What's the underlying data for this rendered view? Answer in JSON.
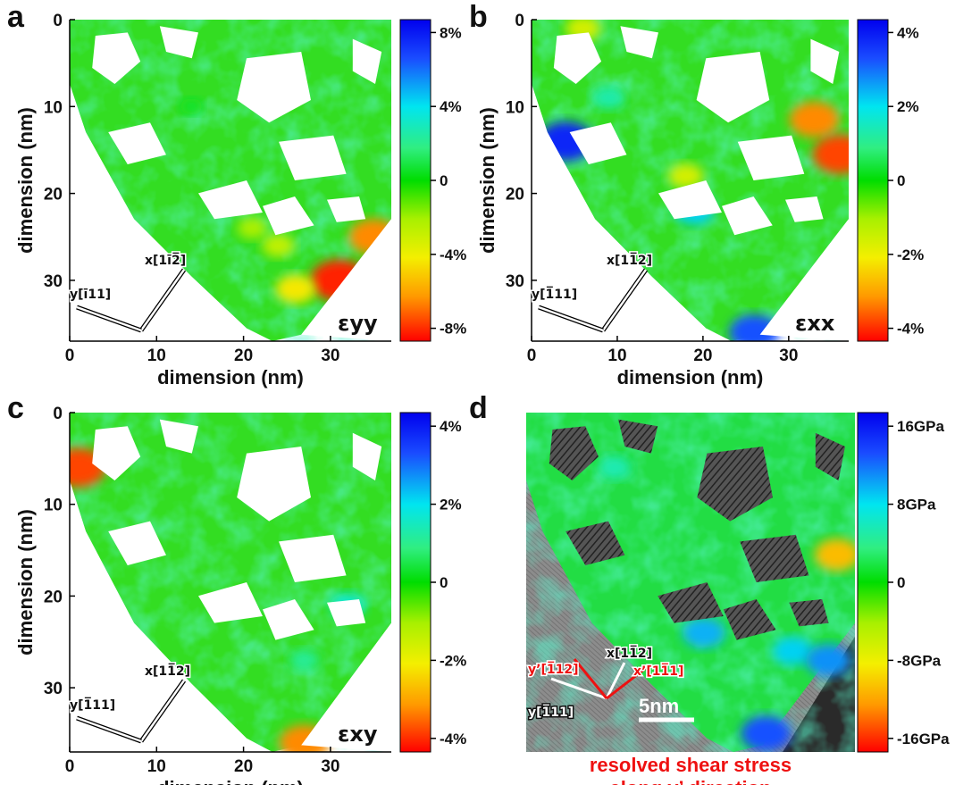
{
  "figure": {
    "caption_line1": "resolved shear stress",
    "caption_line2": "along y’ direction",
    "scale_bar_label": "5nm"
  },
  "chart_data": [
    {
      "type": "heatmap",
      "panel": "a",
      "quantity": "εyy",
      "xlabel": "dimension (nm)",
      "ylabel": "dimension (nm)",
      "xlim": [
        0,
        37
      ],
      "ylim": [
        0,
        37
      ],
      "y_inverted": true,
      "x_ticks": [
        "0",
        "10",
        "20",
        "30"
      ],
      "y_ticks": [
        "0",
        "10",
        "20",
        "30"
      ],
      "colorbar": {
        "min": -8,
        "max": 8,
        "unit": "%",
        "ticks": [
          "8%",
          "4%",
          "0",
          "-4%",
          "-8%"
        ]
      },
      "directions": {
        "x": "x[1ī2̅]",
        "y": "y[ī11]"
      },
      "hotspots": [
        {
          "x": 31,
          "y": 30,
          "value": -7.5
        },
        {
          "x": 35,
          "y": 25,
          "value": -6
        },
        {
          "x": 26,
          "y": 31,
          "value": -4
        },
        {
          "x": 24,
          "y": 26,
          "value": -2.5
        },
        {
          "x": 21,
          "y": 24,
          "value": -2
        },
        {
          "x": 14,
          "y": 10,
          "value": 0.5
        }
      ]
    },
    {
      "type": "heatmap",
      "panel": "b",
      "quantity": "εxx",
      "xlabel": "dimension (nm)",
      "ylabel": "dimension (nm)",
      "xlim": [
        0,
        37
      ],
      "ylim": [
        0,
        37
      ],
      "y_inverted": true,
      "x_ticks": [
        "0",
        "10",
        "20",
        "30"
      ],
      "y_ticks": [
        "0",
        "10",
        "20",
        "30"
      ],
      "colorbar": {
        "min": -4,
        "max": 4,
        "unit": "%",
        "ticks": [
          "4%",
          "2%",
          "0",
          "-2%",
          "-4%"
        ]
      },
      "directions": {
        "x": "x[11̅2]",
        "y": "y[1̅11]"
      },
      "hotspots": [
        {
          "x": 4,
          "y": 14,
          "value": 3.5
        },
        {
          "x": 26,
          "y": 36,
          "value": 3
        },
        {
          "x": 33,
          "y": 11.5,
          "value": -3
        },
        {
          "x": 36,
          "y": 15.5,
          "value": -3.5
        },
        {
          "x": 19,
          "y": 22,
          "value": 2
        },
        {
          "x": 9,
          "y": 9,
          "value": 1.2
        },
        {
          "x": 18,
          "y": 18,
          "value": -1.5
        },
        {
          "x": 6,
          "y": 1,
          "value": -1.5
        }
      ]
    },
    {
      "type": "heatmap",
      "panel": "c",
      "quantity": "εxy",
      "xlabel": "dimension (nm)",
      "ylabel": "dimension (nm)",
      "xlim": [
        0,
        37
      ],
      "ylim": [
        0,
        37
      ],
      "y_inverted": true,
      "x_ticks": [
        "0",
        "10",
        "20",
        "30"
      ],
      "y_ticks": [
        "0",
        "10",
        "20",
        "30"
      ],
      "colorbar": {
        "min": -4,
        "max": 4,
        "unit": "%",
        "ticks": [
          "4%",
          "2%",
          "0",
          "-2%",
          "-4%"
        ]
      },
      "directions": {
        "x": "x[11̅2]",
        "y": "y[1̅11]"
      },
      "hotspots": [
        {
          "x": 27,
          "y": 36,
          "value": -3
        },
        {
          "x": 32,
          "y": 21,
          "value": 1.5
        },
        {
          "x": 27,
          "y": 27,
          "value": 1
        },
        {
          "x": 1,
          "y": 6,
          "value": -3.5
        }
      ]
    },
    {
      "type": "heatmap",
      "panel": "d",
      "quantity": "resolved shear stress along y’ direction",
      "colorbar": {
        "min": -16,
        "max": 16,
        "unit": "GPa",
        "ticks": [
          "16GPa",
          "8GPa",
          "0",
          "-8GPa",
          "-16GPa"
        ]
      },
      "directions": {
        "x": "x[11̅2]",
        "y": "y[1̅11]",
        "x_prime": "x’[11̅1]",
        "y_prime": "y’[1̅12]"
      },
      "hotspots": [
        {
          "x": 27,
          "y": 35,
          "value": 12
        },
        {
          "x": 35,
          "y": 15.5,
          "value": -10
        },
        {
          "x": 20,
          "y": 24,
          "value": 9
        },
        {
          "x": 30,
          "y": 26,
          "value": 8
        },
        {
          "x": 10,
          "y": 6,
          "value": 5
        },
        {
          "x": 34,
          "y": 27,
          "value": 10
        }
      ]
    }
  ]
}
